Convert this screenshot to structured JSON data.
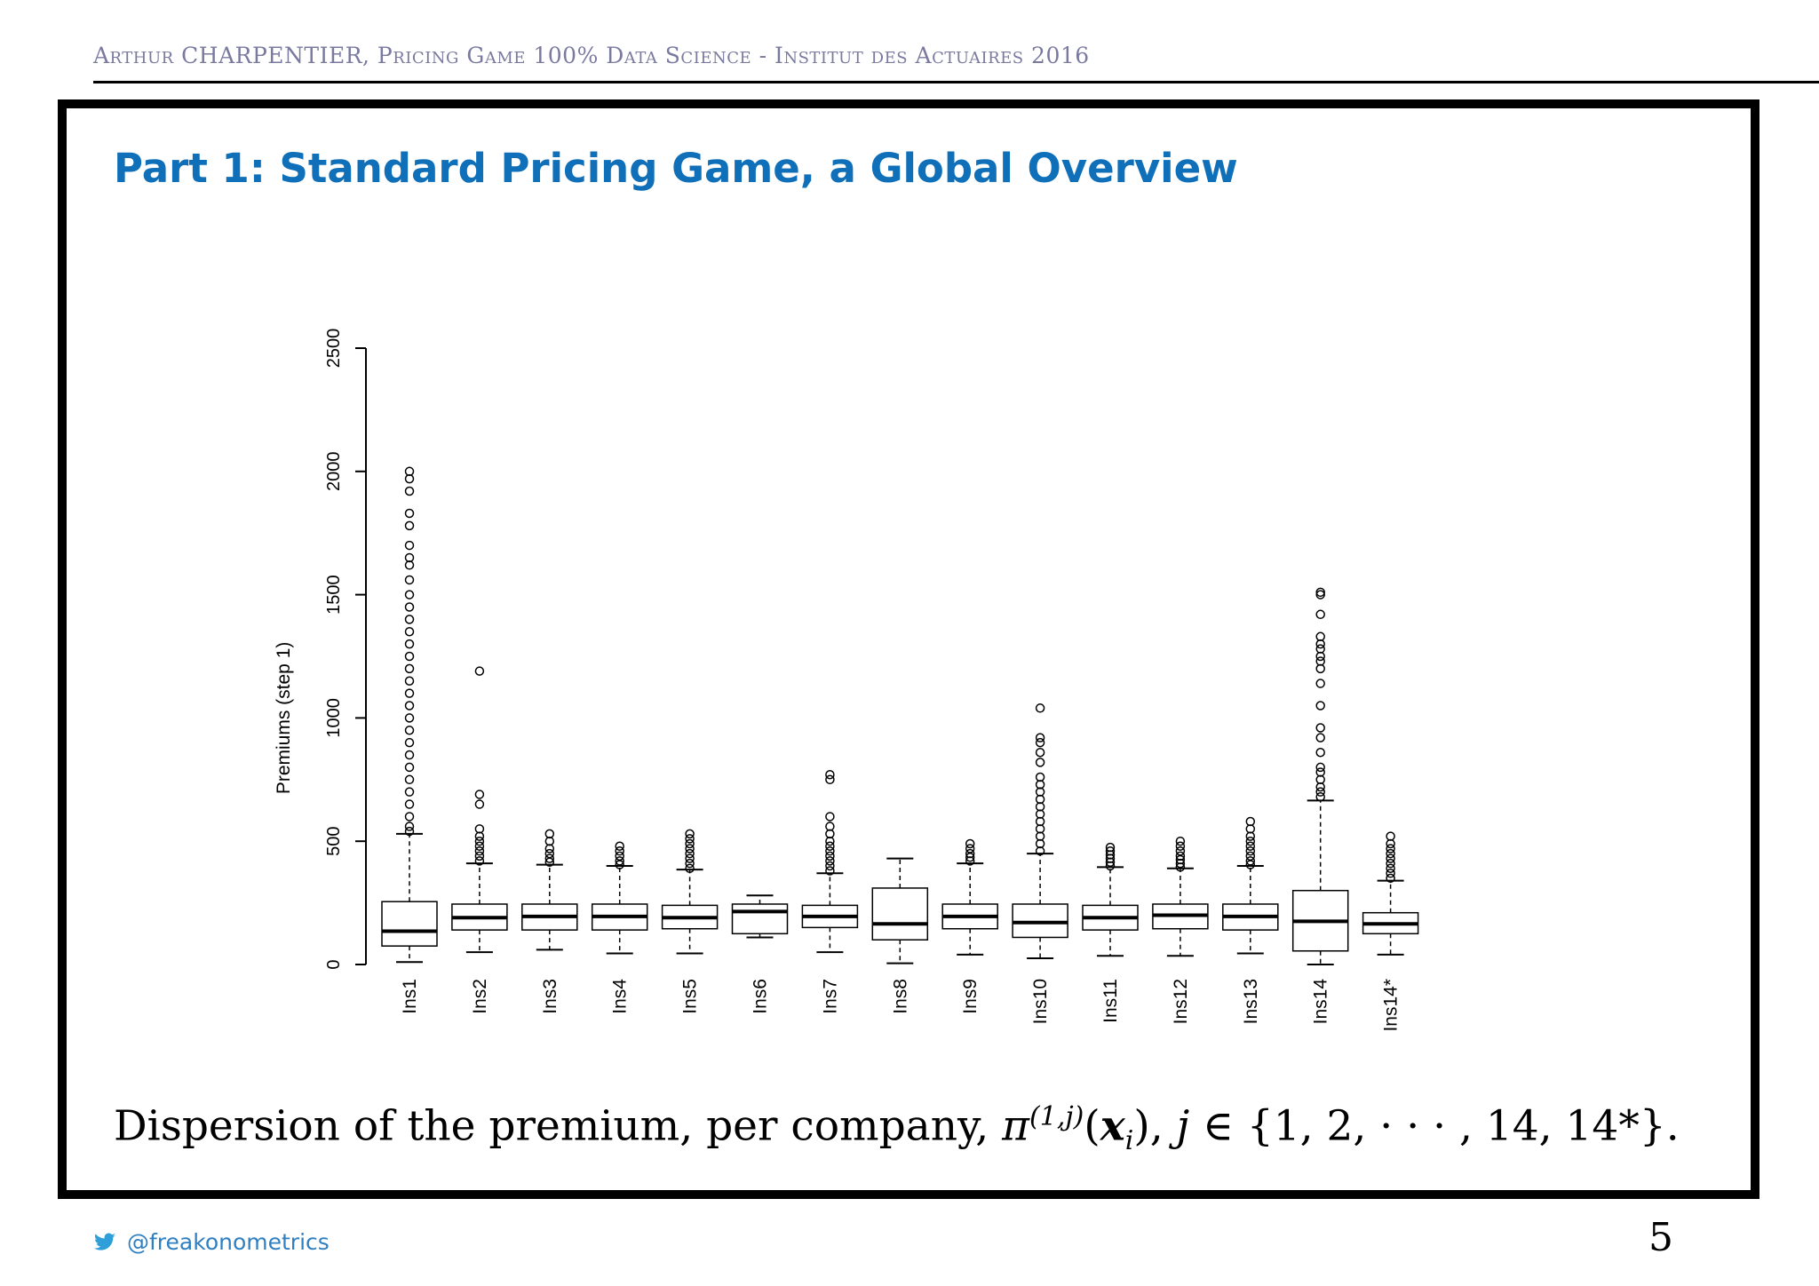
{
  "header": {
    "text": "Arthur CHARPENTIER, Pricing Game 100% Data Science - Institut des Actuaires 2016"
  },
  "slide": {
    "title": "Part 1: Standard Pricing Game, a Global Overview",
    "caption_prefix": "Dispersion of the premium, per company, ",
    "caption_pi": "π",
    "caption_sup": "(1,j)",
    "caption_open": "(",
    "caption_x": "x",
    "caption_sub": "i",
    "caption_mid": "), ",
    "caption_j": "j",
    "caption_suffix": " ∈ {1, 2, · · · , 14, 14*}."
  },
  "footer": {
    "handle": "@freakonometrics",
    "icon": "twitter-bird-icon",
    "page": "5"
  },
  "colors": {
    "title": "#0f6fb8",
    "header": "#7a7aa0",
    "footer": "#2f7fc1"
  },
  "chart_data": {
    "type": "boxplot",
    "ylabel": "Premiums (step 1)",
    "ylim": [
      0,
      2500
    ],
    "yticks": [
      0,
      500,
      1000,
      1500,
      2000,
      2500
    ],
    "categories": [
      "Ins1",
      "Ins2",
      "Ins3",
      "Ins4",
      "Ins5",
      "Ins6",
      "Ins7",
      "Ins8",
      "Ins9",
      "Ins10",
      "Ins11",
      "Ins12",
      "Ins13",
      "Ins14",
      "Ins14*"
    ],
    "boxes": [
      {
        "min": 10,
        "q1": 75,
        "median": 135,
        "q3": 255,
        "max": 530,
        "outliers": [
          540,
          560,
          600,
          650,
          700,
          750,
          800,
          850,
          900,
          950,
          1000,
          1050,
          1100,
          1150,
          1200,
          1250,
          1300,
          1350,
          1400,
          1450,
          1500,
          1560,
          1620,
          1650,
          1700,
          1780,
          1830,
          1920,
          1970,
          2000
        ]
      },
      {
        "min": 50,
        "q1": 140,
        "median": 190,
        "q3": 245,
        "max": 410,
        "outliers": [
          420,
          440,
          460,
          480,
          500,
          520,
          550,
          650,
          690,
          1190
        ]
      },
      {
        "min": 60,
        "q1": 140,
        "median": 195,
        "q3": 245,
        "max": 405,
        "outliers": [
          415,
          430,
          450,
          470,
          500,
          530
        ]
      },
      {
        "min": 45,
        "q1": 140,
        "median": 195,
        "q3": 245,
        "max": 400,
        "outliers": [
          405,
          420,
          440,
          460,
          480
        ]
      },
      {
        "min": 45,
        "q1": 145,
        "median": 190,
        "q3": 240,
        "max": 385,
        "outliers": [
          390,
          410,
          430,
          450,
          470,
          490,
          510,
          530
        ]
      },
      {
        "min": 110,
        "q1": 125,
        "median": 215,
        "q3": 245,
        "max": 280,
        "outliers": []
      },
      {
        "min": 50,
        "q1": 150,
        "median": 195,
        "q3": 240,
        "max": 370,
        "outliers": [
          380,
          400,
          420,
          440,
          460,
          480,
          500,
          530,
          560,
          600,
          750,
          770
        ]
      },
      {
        "min": 5,
        "q1": 100,
        "median": 165,
        "q3": 310,
        "max": 430,
        "outliers": []
      },
      {
        "min": 40,
        "q1": 145,
        "median": 195,
        "q3": 245,
        "max": 410,
        "outliers": [
          420,
          435,
          450,
          470,
          490
        ]
      },
      {
        "min": 25,
        "q1": 110,
        "median": 170,
        "q3": 245,
        "max": 450,
        "outliers": [
          460,
          490,
          520,
          550,
          580,
          610,
          640,
          670,
          700,
          730,
          760,
          820,
          860,
          900,
          920,
          1040
        ]
      },
      {
        "min": 35,
        "q1": 140,
        "median": 190,
        "q3": 240,
        "max": 395,
        "outliers": [
          400,
          415,
          430,
          445,
          460,
          475
        ]
      },
      {
        "min": 35,
        "q1": 145,
        "median": 200,
        "q3": 245,
        "max": 390,
        "outliers": [
          395,
          410,
          425,
          440,
          460,
          480,
          500
        ]
      },
      {
        "min": 45,
        "q1": 140,
        "median": 195,
        "q3": 245,
        "max": 400,
        "outliers": [
          405,
          420,
          440,
          460,
          480,
          500,
          520,
          550,
          580
        ]
      },
      {
        "min": 0,
        "q1": 55,
        "median": 175,
        "q3": 300,
        "max": 665,
        "outliers": [
          680,
          700,
          720,
          750,
          780,
          800,
          860,
          920,
          960,
          1050,
          1140,
          1200,
          1230,
          1250,
          1280,
          1300,
          1330,
          1420,
          1500,
          1510
        ]
      },
      {
        "min": 40,
        "q1": 125,
        "median": 165,
        "q3": 210,
        "max": 340,
        "outliers": [
          350,
          370,
          390,
          410,
          430,
          450,
          470,
          490,
          520
        ]
      }
    ]
  }
}
